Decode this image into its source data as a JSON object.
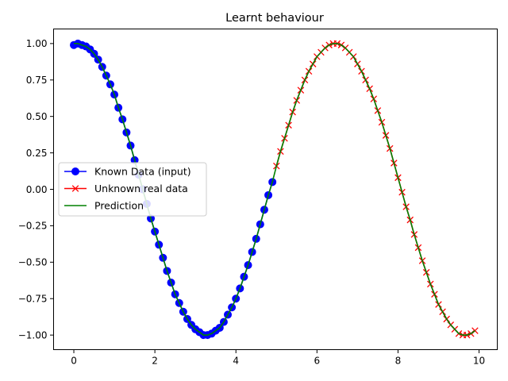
{
  "chart_data": {
    "type": "line",
    "title": "Learnt behaviour",
    "xlabel": "",
    "ylabel": "",
    "xlim": [
      -0.5,
      10.45
    ],
    "ylim": [
      -1.1,
      1.1
    ],
    "xticks": [
      0,
      2,
      4,
      6,
      8,
      10
    ],
    "xtick_labels": [
      "0",
      "2",
      "4",
      "6",
      "8",
      "10"
    ],
    "yticks": [
      1.0,
      0.75,
      0.5,
      0.25,
      0.0,
      -0.25,
      -0.5,
      -0.75,
      -1.0
    ],
    "ytick_labels": [
      "1.00",
      "0.75",
      "0.50",
      "0.25",
      "0.00",
      "−0.25",
      "−0.50",
      "−0.75",
      "−1.00"
    ],
    "grid": false,
    "legend_position": "center-left",
    "series": [
      {
        "name": "Known Data (input)",
        "color": "#0000ff",
        "marker": "circle",
        "x": [
          0.0,
          0.1,
          0.2,
          0.3,
          0.4,
          0.5,
          0.6,
          0.7,
          0.8,
          0.9,
          1.0,
          1.1,
          1.2,
          1.3,
          1.4,
          1.5,
          1.6,
          1.7,
          1.8,
          1.9,
          2.0,
          2.1,
          2.2,
          2.3,
          2.4,
          2.5,
          2.6,
          2.7,
          2.8,
          2.9,
          3.0,
          3.1,
          3.2,
          3.3,
          3.4,
          3.5,
          3.6,
          3.7,
          3.8,
          3.9,
          4.0,
          4.1,
          4.2,
          4.3,
          4.4,
          4.5,
          4.6,
          4.7,
          4.8,
          4.9
        ],
        "y": [
          0.99,
          1.0,
          0.99,
          0.98,
          0.96,
          0.93,
          0.89,
          0.84,
          0.78,
          0.72,
          0.65,
          0.56,
          0.48,
          0.39,
          0.3,
          0.2,
          0.1,
          0.0,
          -0.1,
          -0.2,
          -0.29,
          -0.38,
          -0.47,
          -0.56,
          -0.64,
          -0.72,
          -0.78,
          -0.84,
          -0.89,
          -0.93,
          -0.96,
          -0.98,
          -1.0,
          -1.0,
          -0.99,
          -0.97,
          -0.95,
          -0.91,
          -0.86,
          -0.81,
          -0.75,
          -0.68,
          -0.6,
          -0.52,
          -0.43,
          -0.34,
          -0.24,
          -0.14,
          -0.04,
          0.05
        ]
      },
      {
        "name": "Unknown real data",
        "color": "#ff0000",
        "marker": "x",
        "x": [
          5.0,
          5.1,
          5.2,
          5.3,
          5.4,
          5.5,
          5.6,
          5.7,
          5.8,
          5.9,
          6.0,
          6.1,
          6.2,
          6.3,
          6.4,
          6.5,
          6.6,
          6.7,
          6.8,
          6.9,
          7.0,
          7.1,
          7.2,
          7.3,
          7.4,
          7.5,
          7.6,
          7.7,
          7.8,
          7.9,
          8.0,
          8.1,
          8.2,
          8.3,
          8.4,
          8.5,
          8.6,
          8.7,
          8.8,
          8.9,
          9.0,
          9.1,
          9.2,
          9.3,
          9.4,
          9.5,
          9.6,
          9.7,
          9.8,
          9.9
        ],
        "y": [
          0.16,
          0.26,
          0.35,
          0.44,
          0.53,
          0.61,
          0.68,
          0.75,
          0.81,
          0.86,
          0.91,
          0.94,
          0.97,
          0.99,
          1.0,
          1.0,
          0.99,
          0.97,
          0.94,
          0.91,
          0.86,
          0.81,
          0.75,
          0.69,
          0.62,
          0.54,
          0.46,
          0.37,
          0.28,
          0.18,
          0.08,
          -0.02,
          -0.12,
          -0.21,
          -0.31,
          -0.4,
          -0.49,
          -0.57,
          -0.65,
          -0.72,
          -0.79,
          -0.84,
          -0.89,
          -0.93,
          -0.96,
          -0.99,
          -1.0,
          -1.0,
          -0.99,
          -0.97
        ]
      },
      {
        "name": "Prediction",
        "color": "#008000",
        "marker": "none",
        "x": [
          0.0,
          0.1,
          0.2,
          0.3,
          0.4,
          0.5,
          0.6,
          0.7,
          0.8,
          0.9,
          1.0,
          1.1,
          1.2,
          1.3,
          1.4,
          1.5,
          1.6,
          1.7,
          1.8,
          1.9,
          2.0,
          2.1,
          2.2,
          2.3,
          2.4,
          2.5,
          2.6,
          2.7,
          2.8,
          2.9,
          3.0,
          3.1,
          3.2,
          3.3,
          3.4,
          3.5,
          3.6,
          3.7,
          3.8,
          3.9,
          4.0,
          4.1,
          4.2,
          4.3,
          4.4,
          4.5,
          4.6,
          4.7,
          4.8,
          4.9,
          5.0,
          5.1,
          5.2,
          5.3,
          5.4,
          5.5,
          5.6,
          5.7,
          5.8,
          5.9,
          6.0,
          6.1,
          6.2,
          6.3,
          6.4,
          6.5,
          6.6,
          6.7,
          6.8,
          6.9,
          7.0,
          7.1,
          7.2,
          7.3,
          7.4,
          7.5,
          7.6,
          7.7,
          7.8,
          7.9,
          8.0,
          8.1,
          8.2,
          8.3,
          8.4,
          8.5,
          8.6,
          8.7,
          8.8,
          8.9,
          9.0,
          9.1,
          9.2,
          9.3,
          9.4,
          9.5,
          9.6,
          9.7,
          9.8,
          9.9
        ],
        "y": [
          1.0,
          1.0,
          0.99,
          0.98,
          0.96,
          0.93,
          0.89,
          0.84,
          0.78,
          0.72,
          0.65,
          0.56,
          0.48,
          0.39,
          0.3,
          0.2,
          0.1,
          0.0,
          -0.1,
          -0.2,
          -0.29,
          -0.38,
          -0.47,
          -0.56,
          -0.64,
          -0.72,
          -0.78,
          -0.84,
          -0.89,
          -0.93,
          -0.96,
          -0.98,
          -1.0,
          -1.0,
          -0.99,
          -0.97,
          -0.95,
          -0.91,
          -0.86,
          -0.81,
          -0.75,
          -0.68,
          -0.6,
          -0.52,
          -0.43,
          -0.34,
          -0.24,
          -0.14,
          -0.04,
          0.05,
          0.16,
          0.26,
          0.35,
          0.44,
          0.53,
          0.61,
          0.68,
          0.75,
          0.81,
          0.86,
          0.91,
          0.94,
          0.97,
          0.99,
          1.0,
          1.0,
          0.99,
          0.97,
          0.94,
          0.91,
          0.86,
          0.81,
          0.75,
          0.69,
          0.62,
          0.54,
          0.46,
          0.37,
          0.28,
          0.18,
          0.08,
          -0.02,
          -0.12,
          -0.21,
          -0.31,
          -0.4,
          -0.49,
          -0.57,
          -0.65,
          -0.72,
          -0.79,
          -0.84,
          -0.89,
          -0.93,
          -0.96,
          -0.99,
          -1.0,
          -1.0,
          -0.99,
          -0.97
        ]
      }
    ]
  }
}
